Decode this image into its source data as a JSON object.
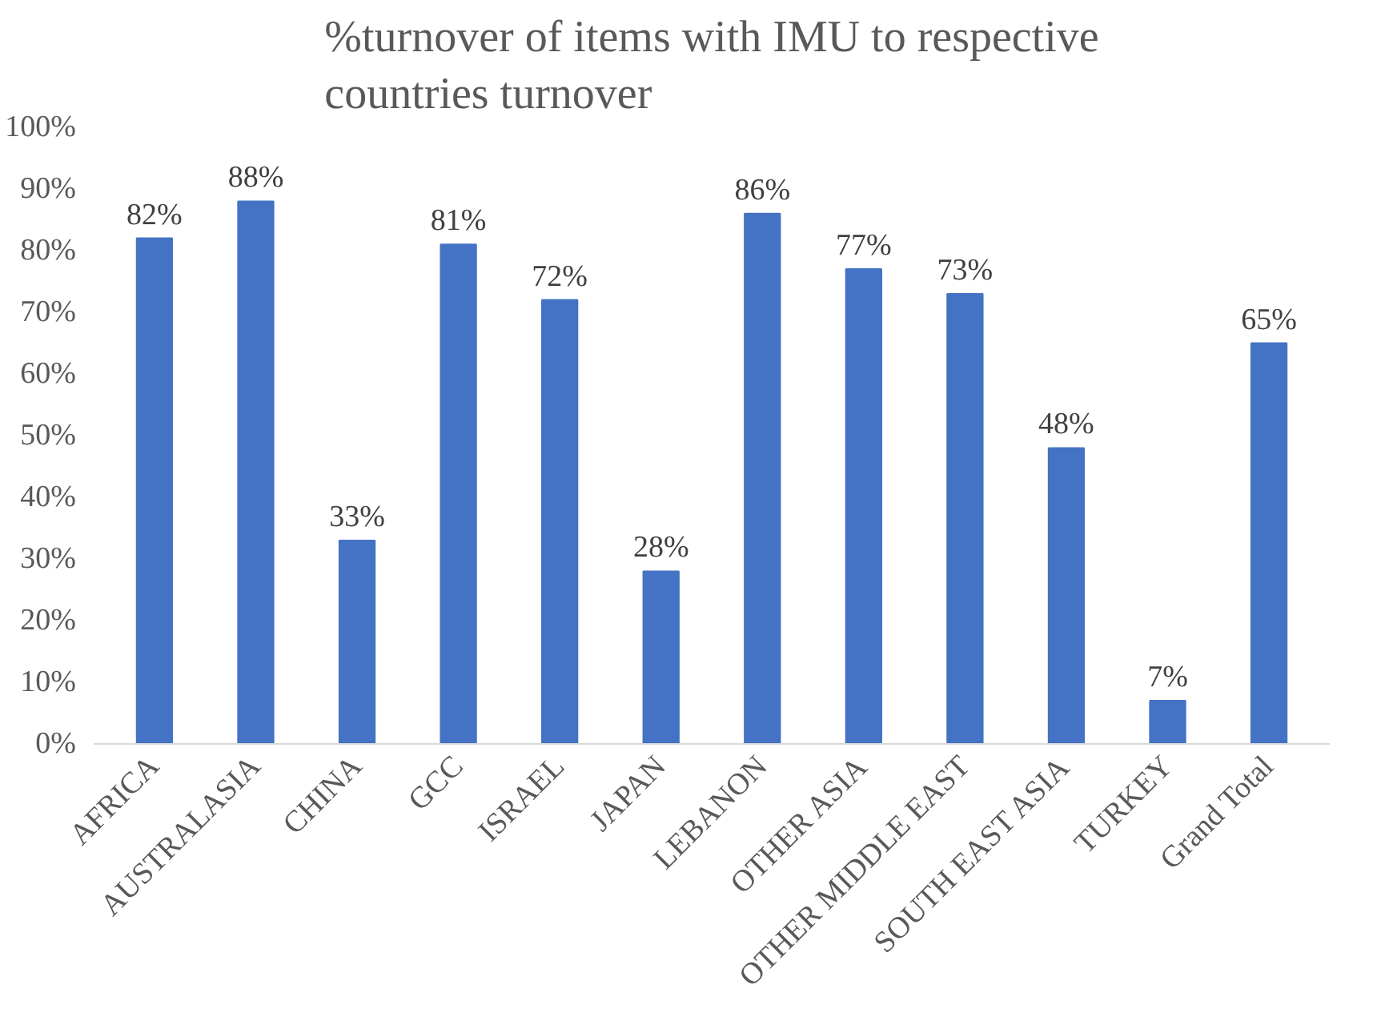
{
  "chart_data": {
    "type": "bar",
    "title": "%turnover of items with IMU to respective countries turnover",
    "categories": [
      "AFRICA",
      "AUSTRALASIA",
      "CHINA",
      "GCC",
      "ISRAEL",
      "JAPAN",
      "LEBANON",
      "OTHER ASIA",
      "OTHER MIDDLE EAST",
      "SOUTH EAST ASIA",
      "TURKEY",
      "Grand Total"
    ],
    "values": [
      82,
      88,
      33,
      81,
      72,
      28,
      86,
      77,
      73,
      48,
      7,
      65
    ],
    "value_labels": [
      "82%",
      "88%",
      "33%",
      "81%",
      "72%",
      "28%",
      "86%",
      "77%",
      "73%",
      "48%",
      "7%",
      "65%"
    ],
    "color": "#4472c4",
    "ylim": [
      0,
      100
    ],
    "yticks": [
      {
        "value": 0,
        "label": "0%"
      },
      {
        "value": 10,
        "label": "10%"
      },
      {
        "value": 20,
        "label": "20%"
      },
      {
        "value": 30,
        "label": "30%"
      },
      {
        "value": 40,
        "label": "40%"
      },
      {
        "value": 50,
        "label": "50%"
      },
      {
        "value": 60,
        "label": "60%"
      },
      {
        "value": 70,
        "label": "70%"
      },
      {
        "value": 80,
        "label": "80%"
      },
      {
        "value": 90,
        "label": "90%"
      },
      {
        "value": 100,
        "label": "100%"
      }
    ],
    "grid": false
  }
}
